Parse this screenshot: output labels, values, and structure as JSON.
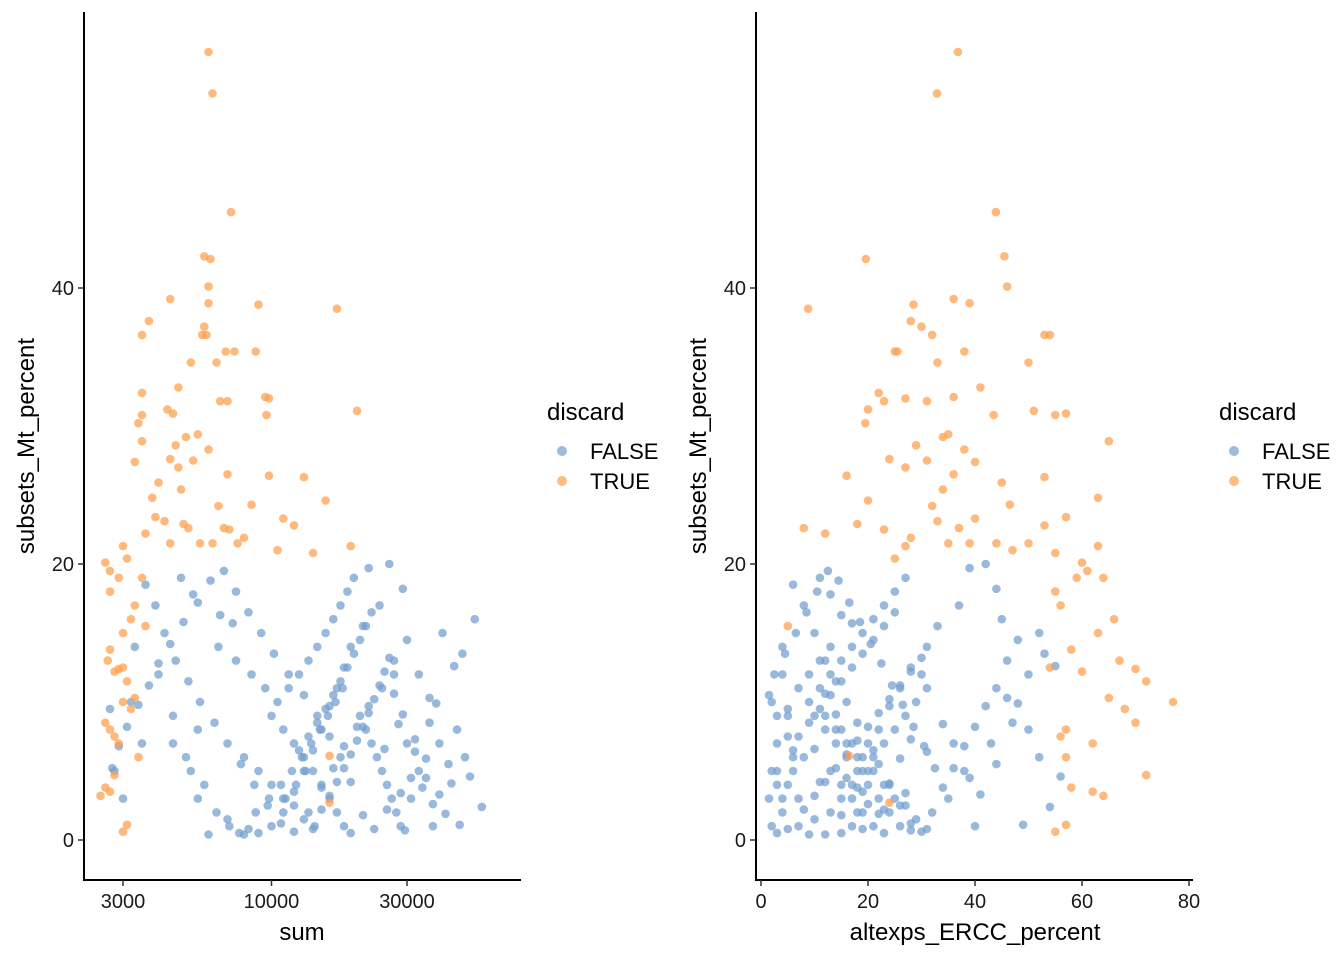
{
  "chart_data": [
    {
      "type": "scatter",
      "xlabel": "sum",
      "ylabel": "subsets_Mt_percent",
      "x_scale": "log10",
      "xlim": [
        2400,
        65000
      ],
      "ylim": [
        -3,
        60
      ],
      "x_ticks": [
        3000,
        10000,
        30000
      ],
      "x_tick_labels": [
        "3000",
        "10000",
        "30000"
      ],
      "y_ticks": [
        0,
        20,
        40
      ],
      "y_tick_labels": [
        "0",
        "20",
        "40"
      ],
      "grid": false,
      "legend": {
        "title": "discard",
        "placement": "right",
        "entries": [
          "FALSE",
          "TRUE"
        ]
      },
      "x_field": "sum"
    },
    {
      "type": "scatter",
      "xlabel": "altexps_ERCC_percent",
      "ylabel": "subsets_Mt_percent",
      "x_scale": "linear",
      "xlim": [
        -1,
        81
      ],
      "ylim": [
        -3,
        60
      ],
      "x_ticks": [
        0,
        20,
        40,
        60,
        80
      ],
      "x_tick_labels": [
        "0",
        "20",
        "40",
        "60",
        "80"
      ],
      "y_ticks": [
        0,
        20,
        40
      ],
      "y_tick_labels": [
        "0",
        "20",
        "40"
      ],
      "grid": false,
      "legend": {
        "title": "discard",
        "placement": "right",
        "entries": [
          "FALSE",
          "TRUE"
        ]
      },
      "x_field": "altexps_ERCC_percent"
    }
  ],
  "colors": {
    "FALSE": "#729ECE",
    "TRUE": "#FF9E4A"
  },
  "point_fields": [
    "sum",
    "altexps_ERCC_percent",
    "subsets_Mt_percent"
  ],
  "points_true": [
    [
      6000,
      36.8,
      57.1
    ],
    [
      6200,
      32.9,
      54.1
    ],
    [
      7200,
      43.9,
      45.5
    ],
    [
      5800,
      45.5,
      42.3
    ],
    [
      6100,
      19.6,
      42.1
    ],
    [
      6000,
      46,
      40.1
    ],
    [
      6000,
      39,
      38.9
    ],
    [
      9000,
      28.5,
      38.8
    ],
    [
      17000,
      8.8,
      38.5
    ],
    [
      4400,
      36,
      39.2
    ],
    [
      3700,
      28,
      37.6
    ],
    [
      5800,
      30,
      37.2
    ],
    [
      5700,
      32,
      36.6
    ],
    [
      6400,
      33,
      34.6
    ],
    [
      6900,
      25,
      35.4
    ],
    [
      7400,
      38,
      35.4
    ],
    [
      8800,
      25.5,
      35.4
    ],
    [
      5200,
      50,
      34.6
    ],
    [
      5900,
      54,
      36.6
    ],
    [
      3500,
      53,
      36.6
    ],
    [
      4700,
      41,
      32.8
    ],
    [
      3500,
      22,
      32.4
    ],
    [
      7000,
      31,
      31.8
    ],
    [
      6600,
      23,
      31.8
    ],
    [
      9500,
      36,
      32.1
    ],
    [
      9800,
      27,
      32
    ],
    [
      20000,
      51,
      31.1
    ],
    [
      3500,
      43.5,
      30.8
    ],
    [
      4500,
      57,
      30.9
    ],
    [
      9600,
      55,
      30.8
    ],
    [
      4300,
      20,
      31.2
    ],
    [
      3400,
      19.5,
      30.2
    ],
    [
      5000,
      34,
      29.2
    ],
    [
      5500,
      35,
      29.4
    ],
    [
      4600,
      29,
      28.6
    ],
    [
      3500,
      65,
      28.9
    ],
    [
      6000,
      38,
      28.3
    ],
    [
      4400,
      24,
      27.6
    ],
    [
      5300,
      31,
      27.5
    ],
    [
      4700,
      27,
      27
    ],
    [
      3300,
      40,
      27.4
    ],
    [
      7000,
      36,
      26.5
    ],
    [
      9800,
      16,
      26.4
    ],
    [
      13000,
      53,
      26.3
    ],
    [
      4000,
      45,
      25.9
    ],
    [
      4800,
      34,
      25.4
    ],
    [
      3800,
      63,
      24.8
    ],
    [
      15500,
      20,
      24.6
    ],
    [
      8500,
      46.5,
      24.3
    ],
    [
      6500,
      32,
      24.2
    ],
    [
      11000,
      40,
      23.3
    ],
    [
      4200,
      33,
      23.1
    ],
    [
      3900,
      57,
      23.4
    ],
    [
      7100,
      23,
      22.5
    ],
    [
      5100,
      8,
      22.6
    ],
    [
      6800,
      37,
      22.6
    ],
    [
      12000,
      53,
      22.8
    ],
    [
      3600,
      12,
      22.2
    ],
    [
      4900,
      18,
      22.9
    ],
    [
      8000,
      28,
      21.9
    ],
    [
      7600,
      35,
      21.5
    ],
    [
      6200,
      44,
      21.5
    ],
    [
      3000,
      27,
      21.3
    ],
    [
      4400,
      50,
      21.5
    ],
    [
      5600,
      39,
      21.5
    ],
    [
      10500,
      47,
      21
    ],
    [
      14000,
      55,
      20.8
    ],
    [
      19000,
      63,
      21.3
    ],
    [
      2600,
      60,
      20.1
    ],
    [
      3100,
      25,
      20.4
    ],
    [
      3200,
      66,
      16
    ],
    [
      3000,
      63,
      15
    ],
    [
      2700,
      58,
      13.8
    ],
    [
      2800,
      60,
      12.2
    ],
    [
      2900,
      70,
      12.4
    ],
    [
      3100,
      72,
      11.5
    ],
    [
      3000,
      77,
      10
    ],
    [
      3300,
      65,
      10.3
    ],
    [
      3200,
      68,
      9.5
    ],
    [
      2600,
      70,
      8.5
    ],
    [
      2700,
      57,
      8
    ],
    [
      2900,
      62,
      7
    ],
    [
      2800,
      72,
      4.7
    ],
    [
      3400,
      57,
      6
    ],
    [
      2500,
      64,
      3.2
    ],
    [
      2600,
      58,
      3.8
    ],
    [
      2700,
      62,
      3.5
    ],
    [
      3000,
      55,
      0.6
    ],
    [
      3100,
      57,
      1.1
    ],
    [
      16000,
      16.5,
      6.1
    ],
    [
      16000,
      24,
      2.7
    ],
    [
      2700,
      55,
      18
    ],
    [
      3300,
      56,
      17
    ],
    [
      2900,
      59,
      19
    ],
    [
      2700,
      61,
      19.5
    ],
    [
      3500,
      64,
      19
    ],
    [
      2800,
      56,
      7.5
    ],
    [
      3000,
      54,
      12.5
    ],
    [
      2650,
      67,
      13
    ],
    [
      3600,
      5,
      15.5
    ]
  ],
  "points_false": [
    [
      52000,
      45,
      16
    ],
    [
      40000,
      52,
      15
    ],
    [
      44000,
      55,
      12.6
    ],
    [
      47000,
      53,
      13.5
    ],
    [
      38000,
      48,
      9.9
    ],
    [
      36000,
      46,
      10.3
    ],
    [
      45000,
      50,
      8
    ],
    [
      55000,
      54,
      2.4
    ],
    [
      50000,
      56,
      4.6
    ],
    [
      48000,
      52,
      6
    ],
    [
      42000,
      44,
      5.5
    ],
    [
      39000,
      41,
      3.3
    ],
    [
      46000,
      49,
      1.1
    ],
    [
      37000,
      40,
      1
    ],
    [
      33000,
      38,
      5
    ],
    [
      30000,
      36,
      7
    ],
    [
      28000,
      34,
      8.4
    ],
    [
      31000,
      35,
      3
    ],
    [
      27000,
      30,
      12
    ],
    [
      29000,
      44,
      18.2
    ],
    [
      26000,
      42,
      20
    ],
    [
      22000,
      39,
      19.7
    ],
    [
      24000,
      37,
      17
    ],
    [
      21000,
      33,
      15.5
    ],
    [
      19000,
      31,
      14
    ],
    [
      18000,
      28,
      12.5
    ],
    [
      17000,
      26,
      11
    ],
    [
      16000,
      24,
      9.7
    ],
    [
      15000,
      22,
      8
    ],
    [
      14000,
      21,
      6.5
    ],
    [
      13000,
      20,
      5
    ],
    [
      12000,
      19,
      3.5
    ],
    [
      11000,
      18,
      2
    ],
    [
      10000,
      17,
      1
    ],
    [
      9000,
      15,
      0.5
    ],
    [
      8000,
      12,
      0.4
    ],
    [
      7000,
      10,
      1.5
    ],
    [
      6000,
      9,
      0.4
    ],
    [
      5500,
      7,
      3
    ],
    [
      5000,
      6,
      6
    ],
    [
      4500,
      5,
      9
    ],
    [
      4000,
      4,
      12
    ],
    [
      3500,
      3,
      7
    ],
    [
      3200,
      2,
      10
    ],
    [
      3000,
      1.5,
      3
    ],
    [
      2800,
      3,
      5
    ],
    [
      2700,
      5,
      9.5
    ],
    [
      3300,
      4,
      14
    ],
    [
      3600,
      6,
      18.5
    ],
    [
      3900,
      8,
      17
    ],
    [
      4200,
      10,
      15
    ],
    [
      4600,
      12,
      13
    ],
    [
      5100,
      14,
      11.5
    ],
    [
      5600,
      16,
      10
    ],
    [
      6300,
      18,
      8.5
    ],
    [
      7000,
      20,
      7
    ],
    [
      7800,
      22,
      5.5
    ],
    [
      8700,
      24,
      4
    ],
    [
      9700,
      26,
      2.5
    ],
    [
      10800,
      28,
      1.2
    ],
    [
      12000,
      30,
      0.6
    ],
    [
      13500,
      32,
      2
    ],
    [
      15000,
      34,
      3.8
    ],
    [
      16500,
      36,
      5.2
    ],
    [
      18000,
      38,
      6.8
    ],
    [
      20000,
      40,
      8.2
    ],
    [
      22000,
      42,
      9.7
    ],
    [
      24500,
      44,
      11
    ],
    [
      27000,
      46,
      13
    ],
    [
      30000,
      48,
      14.5
    ],
    [
      33000,
      50,
      12
    ],
    [
      36000,
      47,
      8.5
    ],
    [
      39000,
      43,
      7
    ],
    [
      35000,
      39,
      4.5
    ],
    [
      32000,
      31,
      6.4
    ],
    [
      28500,
      27,
      3.4
    ],
    [
      25500,
      23,
      2.2
    ],
    [
      23000,
      19,
      0.8
    ],
    [
      21000,
      15,
      1.8
    ],
    [
      19000,
      11,
      4.2
    ],
    [
      17500,
      8,
      6
    ],
    [
      16000,
      5,
      7.5
    ],
    [
      14500,
      3,
      9
    ],
    [
      13000,
      1.5,
      10.5
    ],
    [
      11500,
      2.5,
      12
    ],
    [
      10200,
      4.5,
      13.5
    ],
    [
      9200,
      6.5,
      15
    ],
    [
      8300,
      8.5,
      16.5
    ],
    [
      7500,
      10.5,
      18
    ],
    [
      6800,
      12.5,
      19.5
    ],
    [
      6100,
      14.5,
      18.8
    ],
    [
      5500,
      16.5,
      17.2
    ],
    [
      4900,
      18.5,
      15.8
    ],
    [
      4400,
      20.5,
      14.2
    ],
    [
      4000,
      22.5,
      12.8
    ],
    [
      3700,
      24.5,
      11.2
    ],
    [
      3400,
      26.5,
      9.8
    ],
    [
      3100,
      28.5,
      8.2
    ],
    [
      2900,
      30.5,
      6.8
    ],
    [
      2750,
      32.5,
      5.2
    ],
    [
      10000,
      12,
      9
    ],
    [
      11000,
      14,
      8
    ],
    [
      12000,
      16,
      7
    ],
    [
      13000,
      18,
      6
    ],
    [
      14000,
      13,
      5
    ],
    [
      15000,
      15,
      4
    ],
    [
      16000,
      17,
      3
    ],
    [
      17000,
      19,
      2
    ],
    [
      18000,
      21,
      1
    ],
    [
      19000,
      23,
      0.5
    ],
    [
      10500,
      9,
      10
    ],
    [
      11500,
      11,
      11
    ],
    [
      12500,
      13,
      12
    ],
    [
      13500,
      15,
      13
    ],
    [
      14500,
      17,
      14
    ],
    [
      15500,
      19,
      15
    ],
    [
      16500,
      21,
      16
    ],
    [
      17500,
      23,
      17
    ],
    [
      18500,
      25,
      18
    ],
    [
      19500,
      27,
      19
    ],
    [
      20500,
      10,
      9
    ],
    [
      21500,
      12,
      8
    ],
    [
      22500,
      14,
      7
    ],
    [
      23500,
      16,
      6
    ],
    [
      24500,
      18,
      5
    ],
    [
      25500,
      20,
      4
    ],
    [
      26500,
      22,
      3
    ],
    [
      27500,
      24,
      2
    ],
    [
      28500,
      26,
      1
    ],
    [
      29500,
      28,
      0.7
    ],
    [
      9500,
      7,
      11
    ],
    [
      8500,
      9,
      12
    ],
    [
      7500,
      11,
      13
    ],
    [
      6500,
      13,
      14
    ],
    [
      5500,
      15,
      8
    ],
    [
      4500,
      17,
      7
    ],
    [
      8000,
      19,
      6
    ],
    [
      9000,
      21,
      5
    ],
    [
      10000,
      23,
      4
    ],
    [
      11000,
      25,
      3
    ],
    [
      12000,
      27,
      2.5
    ],
    [
      13000,
      29,
      1.5
    ],
    [
      14000,
      31,
      0.8
    ],
    [
      15000,
      8,
      2.2
    ],
    [
      16000,
      10,
      3.2
    ],
    [
      17000,
      12,
      4.2
    ],
    [
      18000,
      14,
      5.2
    ],
    [
      19000,
      16,
      6.2
    ],
    [
      20000,
      18,
      7.2
    ],
    [
      21000,
      20,
      8.2
    ],
    [
      22000,
      22,
      9.2
    ],
    [
      23000,
      24,
      10.2
    ],
    [
      24000,
      26,
      11.2
    ],
    [
      25000,
      28,
      12.2
    ],
    [
      26000,
      30,
      13.2
    ],
    [
      12500,
      6,
      6.5
    ],
    [
      13500,
      7,
      7.5
    ],
    [
      14500,
      9,
      8.5
    ],
    [
      15500,
      11,
      9.5
    ],
    [
      16500,
      13,
      10.5
    ],
    [
      17500,
      15,
      11.5
    ],
    [
      18500,
      17,
      12.5
    ],
    [
      19500,
      19,
      13.5
    ],
    [
      20500,
      21,
      14.5
    ],
    [
      21500,
      23,
      15.5
    ],
    [
      22500,
      25,
      16.5
    ],
    [
      11200,
      4,
      3
    ],
    [
      12200,
      5,
      4
    ],
    [
      13200,
      6,
      5
    ],
    [
      14200,
      7,
      1
    ],
    [
      8800,
      13,
      2
    ],
    [
      9800,
      15,
      3
    ],
    [
      10800,
      17,
      4
    ],
    [
      11800,
      19,
      5
    ],
    [
      12800,
      21,
      6
    ],
    [
      13800,
      23,
      7
    ],
    [
      14800,
      25,
      8
    ],
    [
      15800,
      27,
      9
    ],
    [
      16800,
      29,
      10
    ],
    [
      17800,
      31,
      11
    ],
    [
      5200,
      2,
      5
    ],
    [
      5800,
      3,
      4
    ],
    [
      6400,
      4,
      2
    ],
    [
      7100,
      2,
      1
    ],
    [
      7700,
      3,
      0.5
    ],
    [
      8300,
      5,
      0.8
    ],
    [
      4800,
      11,
      19
    ],
    [
      5300,
      13,
      17.8
    ],
    [
      6600,
      15,
      16.3
    ],
    [
      7300,
      17,
      15.7
    ],
    [
      31000,
      16,
      4.5
    ],
    [
      34000,
      18,
      3.8
    ],
    [
      37000,
      20,
      2.6
    ],
    [
      41000,
      22,
      1.9
    ],
    [
      43000,
      24,
      4.1
    ],
    [
      35000,
      26,
      5.9
    ],
    [
      32000,
      28,
      7.3
    ],
    [
      29000,
      14,
      9.1
    ],
    [
      27000,
      12,
      10.6
    ],
    [
      25000,
      10,
      6.6
    ]
  ]
}
